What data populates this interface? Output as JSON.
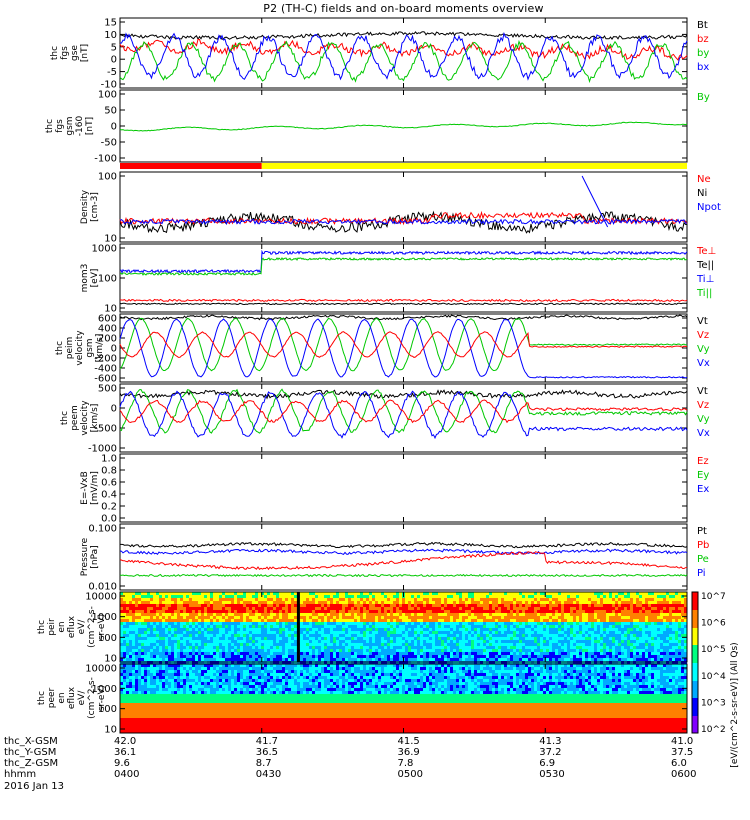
{
  "title": "P2 (TH-C) fields and on-board moments overview",
  "footer_date": "2016 Jan 13",
  "x_axis": {
    "rows": [
      {
        "label": "thc_X-GSM",
        "values": [
          "42.0",
          "41.7",
          "41.5",
          "41.3",
          "41.0"
        ]
      },
      {
        "label": "thc_Y-GSM",
        "values": [
          "36.1",
          "36.5",
          "36.9",
          "37.2",
          "37.5"
        ]
      },
      {
        "label": "thc_Z-GSM",
        "values": [
          "9.6",
          "8.7",
          "7.8",
          "6.9",
          "6.0"
        ]
      },
      {
        "label": "hhmm",
        "values": [
          "0400",
          "0430",
          "0500",
          "0530",
          "0600"
        ]
      }
    ]
  },
  "colorbar": {
    "label": "[eV/(cm^2-s-sr-eV)] (All Qs)",
    "ticks": [
      "10^2",
      "10^3",
      "10^4",
      "10^5",
      "10^6",
      "10^7"
    ],
    "colors": [
      "#8000ff",
      "#0000ff",
      "#00aaff",
      "#00ffff",
      "#00ff80",
      "#ffff00",
      "#ff8000",
      "#ff0000"
    ]
  },
  "panels": [
    {
      "id": "fgs",
      "ylabel": "thc\nfgs\ngse\n[nT]",
      "ytick_labels": [
        "15",
        "10",
        "5",
        "0",
        "-5",
        "-10"
      ],
      "legend": [
        {
          "text": "Bt",
          "color": "#000000"
        },
        {
          "text": "bz",
          "color": "#ff0000"
        },
        {
          "text": "by",
          "color": "#00c800"
        },
        {
          "text": "bx",
          "color": "#0000ff"
        }
      ]
    },
    {
      "id": "fgs_gsm",
      "ylabel": "thc\nfgs\ngsm\n-160\n[nT]",
      "ytick_labels": [
        "100",
        "50",
        "0",
        "-50",
        "-100"
      ],
      "legend": [
        {
          "text": "By",
          "color": "#00c800"
        }
      ]
    },
    {
      "id": "density",
      "ylabel": "Density\n[cm-3]",
      "ytick_labels": [
        "100",
        "10"
      ],
      "legend": [
        {
          "text": "Ne",
          "color": "#ff0000"
        },
        {
          "text": "Ni",
          "color": "#000000"
        },
        {
          "text": "Npot",
          "color": "#0000ff"
        }
      ]
    },
    {
      "id": "temp",
      "ylabel": "mom3\n[eV]",
      "ytick_labels": [
        "1000",
        "100",
        "10"
      ],
      "legend": [
        {
          "text": "Te⊥",
          "color": "#ff0000"
        },
        {
          "text": "Te||",
          "color": "#000000"
        },
        {
          "text": "Ti⊥",
          "color": "#0000ff"
        },
        {
          "text": "Ti||",
          "color": "#00c800"
        }
      ]
    },
    {
      "id": "peim",
      "ylabel": "thc\npeim\nvelocity\ngsm\n[km/s]",
      "ytick_labels": [
        "600",
        "400",
        "200",
        "0",
        "-200",
        "-400",
        "-600"
      ],
      "legend": [
        {
          "text": "Vt",
          "color": "#000000"
        },
        {
          "text": "Vz",
          "color": "#ff0000"
        },
        {
          "text": "Vy",
          "color": "#00c800"
        },
        {
          "text": "Vx",
          "color": "#0000ff"
        }
      ]
    },
    {
      "id": "peem",
      "ylabel": "thc\npeem\nvelocity\n[km/s]",
      "ytick_labels": [
        "500",
        "0",
        "-500",
        "-1000"
      ],
      "legend": [
        {
          "text": "Vt",
          "color": "#000000"
        },
        {
          "text": "Vz",
          "color": "#ff0000"
        },
        {
          "text": "Vy",
          "color": "#00c800"
        },
        {
          "text": "Vx",
          "color": "#0000ff"
        }
      ]
    },
    {
      "id": "efield",
      "ylabel": "E=-VxB\n[mV/m]",
      "ytick_labels": [
        "1.0",
        "0.8",
        "0.6",
        "0.4",
        "0.2",
        "0.0"
      ],
      "legend": [
        {
          "text": "Ez",
          "color": "#ff0000"
        },
        {
          "text": "Ey",
          "color": "#00c800"
        },
        {
          "text": "Ex",
          "color": "#0000ff"
        }
      ]
    },
    {
      "id": "pressure",
      "ylabel": "Pressure\n[nPa]",
      "ytick_labels": [
        "0.100",
        "0.010"
      ],
      "legend": [
        {
          "text": "Pt",
          "color": "#000000"
        },
        {
          "text": "Pb",
          "color": "#ff0000"
        },
        {
          "text": "Pe",
          "color": "#00c800"
        },
        {
          "text": "Pi",
          "color": "#0000ff"
        }
      ]
    },
    {
      "id": "peir",
      "ylabel": "thc\npeir\nen\neflux\neV/\n(cm^2-s-\nsr-eV)",
      "ytick_labels": [
        "10000",
        "1000",
        "100",
        "10"
      ],
      "legend": []
    },
    {
      "id": "peer",
      "ylabel": "thc\npeer\nen\neflux\neV/\n(cm^2-s-\nsr-eV)",
      "ytick_labels": [
        "10000",
        "1000",
        "100",
        "10"
      ],
      "legend": []
    }
  ],
  "chart_data": {
    "type": "line",
    "title": "P2 (TH-C) fields and on-board moments overview",
    "x_time_ticks": [
      "0400",
      "0430",
      "0500",
      "0530",
      "0600"
    ],
    "x_range": [
      "0400",
      "0600"
    ],
    "mode_bar": [
      {
        "from": "0400",
        "to": "0430",
        "color": "#ff0000"
      },
      {
        "from": "0430",
        "to": "0600",
        "color": "#ffff00"
      }
    ],
    "series_summary": [
      {
        "panel": "fgs",
        "series": [
          {
            "name": "Bt",
            "approx_level": 8
          },
          {
            "name": "bz",
            "approx_level": 3
          },
          {
            "name": "by",
            "oscillation_amplitude": 7
          },
          {
            "name": "bx",
            "oscillation_amplitude": 8
          }
        ]
      },
      {
        "panel": "fgs_gsm",
        "series": [
          {
            "name": "By",
            "approx_range": [
              -30,
              5
            ]
          }
        ]
      },
      {
        "panel": "density",
        "series": [
          {
            "name": "Ne",
            "approx_level": 4
          },
          {
            "name": "Ni",
            "approx_level": 3.5
          },
          {
            "name": "Npot",
            "approx_level": 4
          }
        ]
      },
      {
        "panel": "temp",
        "series": [
          {
            "name": "Ti⊥",
            "before_0430": 200,
            "after_0430": 1500
          },
          {
            "name": "Ti||",
            "before_0430": 150,
            "after_0430": 1100
          },
          {
            "name": "Te⊥",
            "approx_level": 18
          },
          {
            "name": "Te||",
            "approx_level": 14
          }
        ]
      },
      {
        "panel": "peim",
        "series": [
          {
            "name": "Vt",
            "approx_level": 580
          },
          {
            "name": "Vy",
            "oscillation_amplitude": 450
          },
          {
            "name": "Vx",
            "oscillation_amplitude": 500
          },
          {
            "name": "Vz",
            "oscillation_amplitude": 250
          }
        ]
      },
      {
        "panel": "peem",
        "series": [
          {
            "name": "Vt",
            "approx_level": 600
          },
          {
            "name": "Vy",
            "oscillation_amplitude": 400
          },
          {
            "name": "Vx",
            "oscillation_amplitude": 450
          },
          {
            "name": "Vz",
            "oscillation_amplitude": 250
          }
        ]
      },
      {
        "panel": "pressure",
        "series": [
          {
            "name": "Pt",
            "approx_level": 0.09
          },
          {
            "name": "Pi",
            "approx_level": 0.06
          },
          {
            "name": "Pb",
            "approx_level": 0.03
          },
          {
            "name": "Pe",
            "approx_level": 0.012
          }
        ]
      }
    ]
  }
}
